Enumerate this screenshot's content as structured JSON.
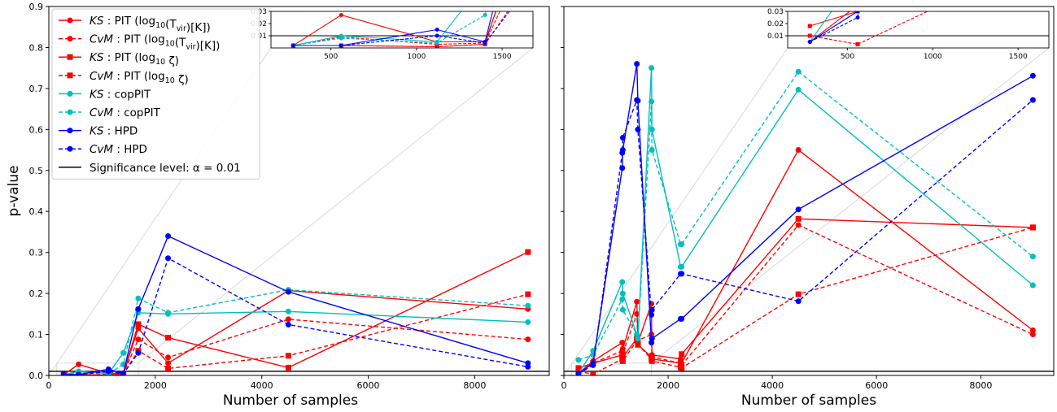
{
  "chart_data": [
    {
      "type": "line",
      "panel": "left",
      "xlabel": "Number of samples",
      "ylabel": "p-value",
      "xlim": [
        0,
        9400
      ],
      "ylim": [
        0,
        0.9
      ],
      "xticks": [
        0,
        2000,
        4000,
        6000,
        8000
      ],
      "yticks": [
        0.0,
        0.1,
        0.2,
        0.3,
        0.4,
        0.5,
        0.6,
        0.7,
        0.8,
        0.9
      ],
      "ytick_labels": [
        "0.0",
        "0.1",
        "0.2",
        "0.3",
        "0.4",
        "0.5",
        "0.6",
        "0.7",
        "0.8",
        "0.9"
      ],
      "grid": false,
      "legend_position": "top-left",
      "x": [
        280,
        560,
        1120,
        1400,
        1680,
        2240,
        4500,
        9000
      ],
      "threshold": {
        "value": 0.01,
        "label": "Significance level: α = 0.01",
        "color": "#000000"
      },
      "series": [
        {
          "name": "KS : PIT (log10(Tvir)[K])",
          "color": "#ff0000",
          "dash": "solid",
          "marker": "circle",
          "values": [
            0.002,
            0.027,
            0.005,
            0.005,
            0.115,
            0.03,
            0.207,
            0.162
          ]
        },
        {
          "name": "CvM : PIT (log10(Tvir)[K])",
          "color": "#ff0000",
          "dash": "dashed",
          "marker": "circle",
          "values": [
            0.002,
            0.009,
            0.003,
            0.004,
            0.088,
            0.044,
            0.137,
            0.088
          ]
        },
        {
          "name": "KS : PIT (log10 ζ)",
          "color": "#ff0000",
          "dash": "solid",
          "marker": "square",
          "values": [
            0.002,
            0.002,
            0.001,
            0.003,
            0.125,
            0.092,
            0.019,
            0.301
          ]
        },
        {
          "name": "CvM : PIT (log10 ζ)",
          "color": "#ff0000",
          "dash": "dashed",
          "marker": "square",
          "values": [
            0.002,
            0.002,
            0.001,
            0.003,
            0.06,
            0.017,
            0.048,
            0.198
          ]
        },
        {
          "name": "KS : copPIT",
          "color": "#00bfbf",
          "dash": "solid",
          "marker": "circle",
          "values": [
            0.002,
            0.01,
            0.005,
            0.055,
            0.153,
            0.15,
            0.156,
            0.13
          ]
        },
        {
          "name": "CvM : copPIT",
          "color": "#00bfbf",
          "dash": "dashed",
          "marker": "circle",
          "values": [
            0.002,
            0.008,
            0.004,
            0.027,
            0.188,
            0.153,
            0.209,
            0.17
          ]
        },
        {
          "name": "KS : HPD",
          "color": "#0000ff",
          "dash": "solid",
          "marker": "circle",
          "values": [
            0.002,
            0.002,
            0.015,
            0.005,
            0.162,
            0.34,
            0.204,
            0.03
          ]
        },
        {
          "name": "CvM : HPD",
          "color": "#0000ff",
          "dash": "dashed",
          "marker": "circle",
          "values": [
            0.002,
            0.002,
            0.01,
            0.004,
            0.055,
            0.286,
            0.124,
            0.021
          ]
        }
      ],
      "inset": {
        "xlim": [
          150,
          1680
        ],
        "ylim": [
          0,
          0.03
        ],
        "xticks": [
          500,
          1000,
          1500
        ],
        "yticks": [
          0.01,
          0.02,
          0.03
        ],
        "ytick_labels": [
          "0.01",
          "0.02",
          "0.03"
        ]
      }
    },
    {
      "type": "line",
      "panel": "right",
      "xlabel": "Number of samples",
      "ylabel": "",
      "xlim": [
        0,
        9400
      ],
      "ylim": [
        0,
        0.9
      ],
      "xticks": [
        0,
        2000,
        4000,
        6000,
        8000
      ],
      "yticks": [
        0.0,
        0.1,
        0.2,
        0.3,
        0.4,
        0.5,
        0.6,
        0.7,
        0.8,
        0.9
      ],
      "grid": false,
      "x": [
        280,
        560,
        1120,
        1130,
        1400,
        1420,
        1680,
        1690,
        2240,
        2260,
        4500,
        9000
      ],
      "threshold": {
        "value": 0.01,
        "color": "#000000"
      },
      "series": [
        {
          "name": "KS : PIT (log10(Tvir)[K])",
          "color": "#ff0000",
          "dash": "solid",
          "marker": "circle",
          "values": [
            0.005,
            0.035,
            0.08,
            0.065,
            0.18,
            0.08,
            0.175,
            0.05,
            0.04,
            0.03,
            0.55,
            0.11
          ]
        },
        {
          "name": "CvM : PIT (log10(Tvir)[K])",
          "color": "#ff0000",
          "dash": "dashed",
          "marker": "circle",
          "values": [
            0.005,
            0.03,
            0.06,
            0.055,
            0.15,
            0.085,
            0.1,
            0.045,
            0.03,
            0.025,
            0.367,
            0.1
          ]
        },
        {
          "name": "KS : PIT (log10 ζ)",
          "color": "#ff0000",
          "dash": "solid",
          "marker": "square",
          "values": [
            0.018,
            0.03,
            0.05,
            0.045,
            0.09,
            0.075,
            0.045,
            0.04,
            0.03,
            0.052,
            0.382,
            0.361
          ]
        },
        {
          "name": "CvM : PIT (log10 ζ)",
          "color": "#ff0000",
          "dash": "dashed",
          "marker": "square",
          "values": [
            0.01,
            0.003,
            0.04,
            0.035,
            0.085,
            0.075,
            0.04,
            0.035,
            0.02,
            0.018,
            0.198,
            0.361
          ]
        },
        {
          "name": "KS : copPIT",
          "color": "#00bfbf",
          "dash": "solid",
          "marker": "circle",
          "values": [
            0.005,
            0.06,
            0.228,
            0.2,
            0.1,
            0.09,
            0.75,
            0.6,
            0.265,
            0.265,
            0.697,
            0.22
          ]
        },
        {
          "name": "CvM : copPIT",
          "color": "#00bfbf",
          "dash": "dashed",
          "marker": "circle",
          "values": [
            0.038,
            0.05,
            0.186,
            0.16,
            0.1,
            0.09,
            0.668,
            0.55,
            0.32,
            0.32,
            0.741,
            0.29
          ]
        },
        {
          "name": "KS : HPD",
          "color": "#0000ff",
          "dash": "solid",
          "marker": "circle",
          "values": [
            0.005,
            0.03,
            0.506,
            0.55,
            0.76,
            0.67,
            0.08,
            0.09,
            0.138,
            0.138,
            0.405,
            0.731
          ]
        },
        {
          "name": "CvM : HPD",
          "color": "#0000ff",
          "dash": "dashed",
          "marker": "circle",
          "values": [
            0.005,
            0.025,
            0.543,
            0.58,
            0.672,
            0.6,
            0.148,
            0.16,
            0.248,
            0.248,
            0.181,
            0.672
          ]
        }
      ],
      "inset": {
        "xlim": [
          150,
          1680
        ],
        "ylim": [
          0,
          0.03
        ],
        "xticks": [
          500,
          1000,
          1500
        ],
        "yticks": [
          0.01,
          0.02,
          0.03
        ],
        "ytick_labels": [
          "0.01",
          "0.02",
          "0.03"
        ]
      }
    }
  ]
}
